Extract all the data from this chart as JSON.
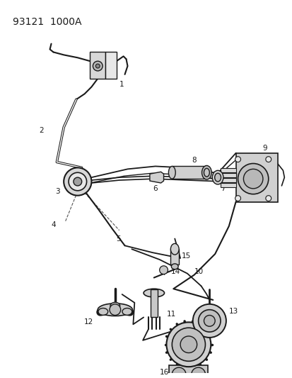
{
  "title": "93121  1000A",
  "bg": "#ffffff",
  "lc": "#1a1a1a",
  "tc": "#1a1a1a",
  "gray1": "#c8c8c8",
  "gray2": "#b0b0b0",
  "gray3": "#e0e0e0",
  "fig_w": 4.14,
  "fig_h": 5.33,
  "dpi": 100,
  "title_fs": 10,
  "lbl_fs": 7.5
}
